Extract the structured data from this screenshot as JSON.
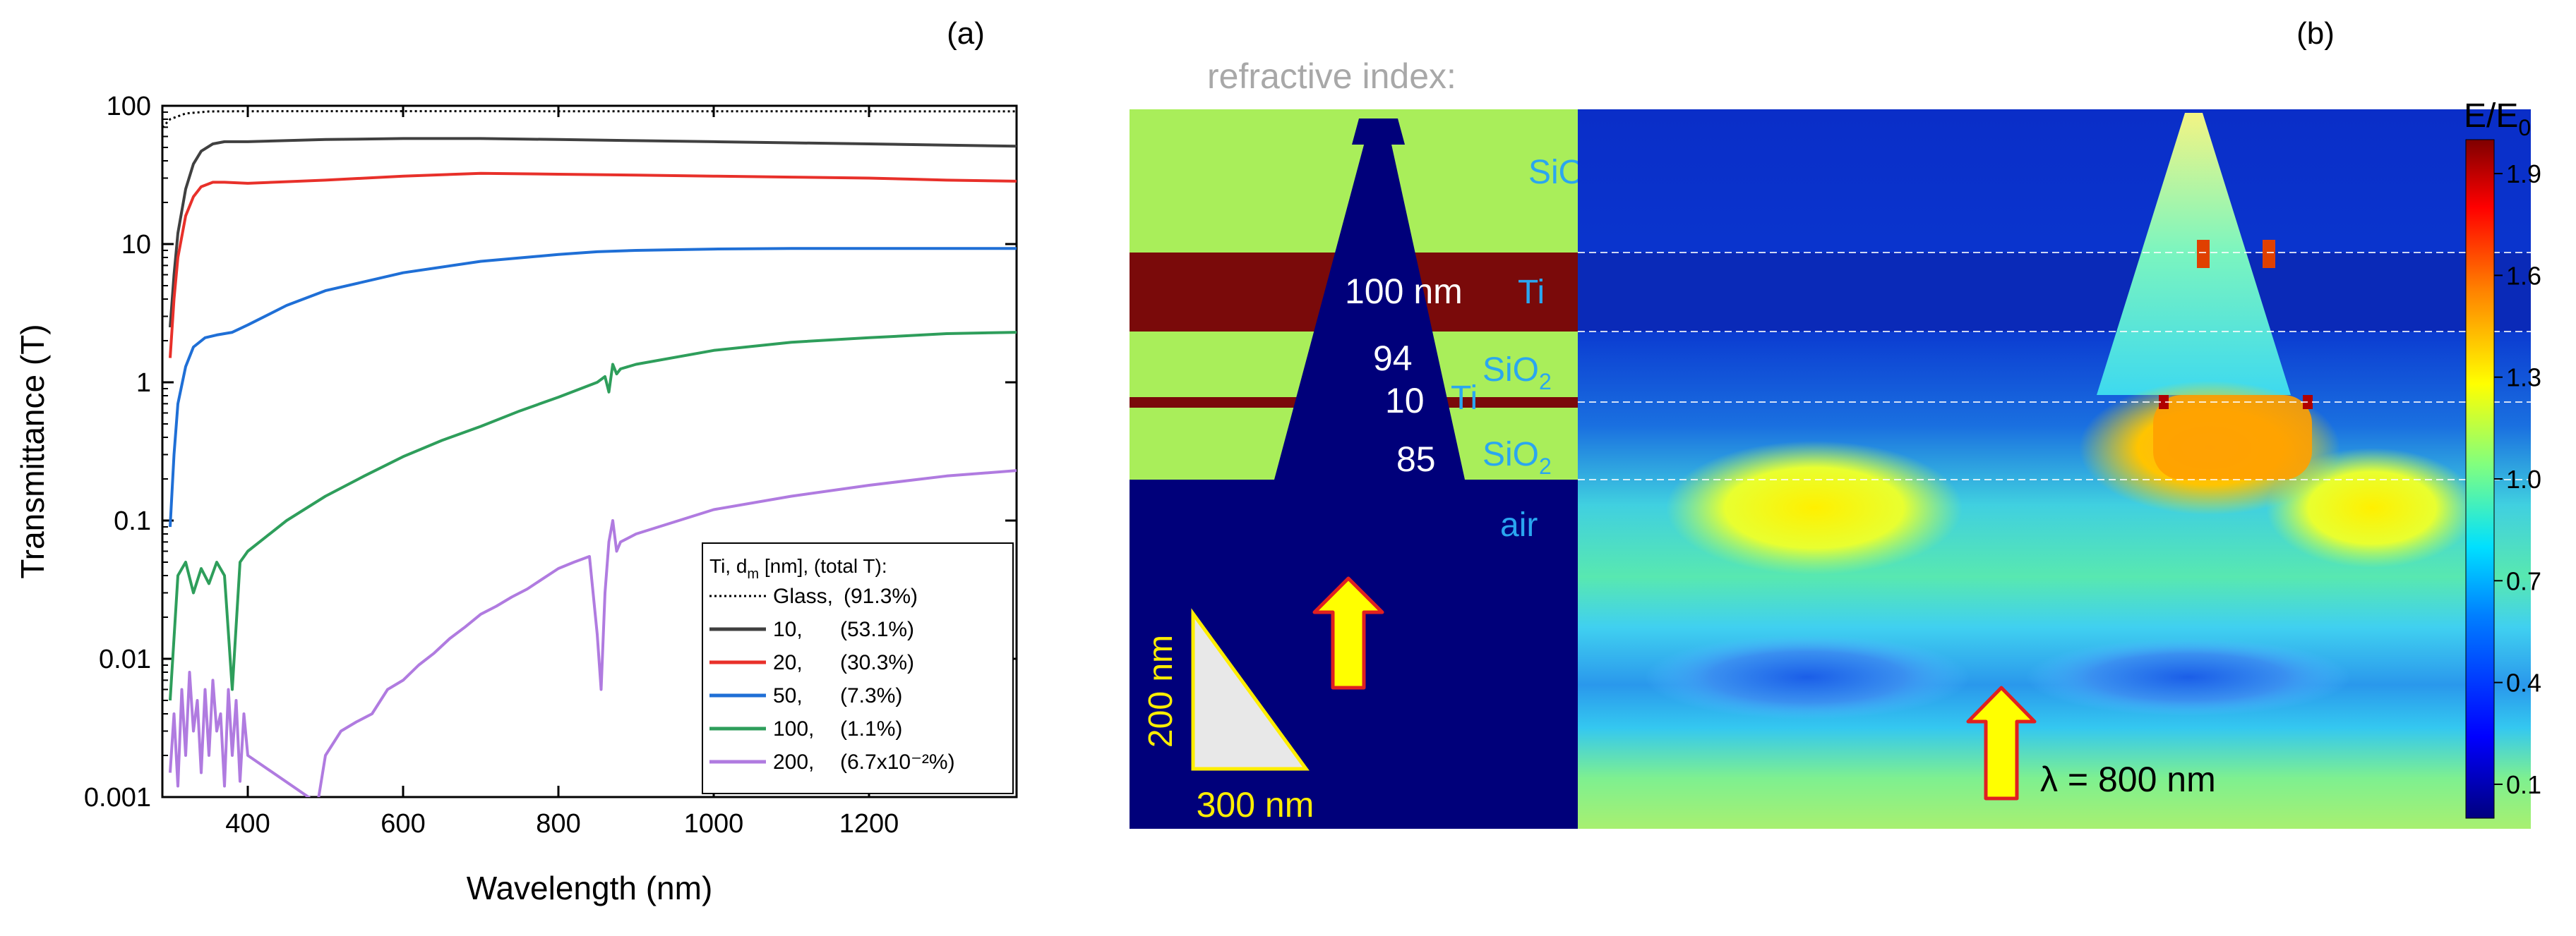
{
  "panel_a": {
    "label": "(a)",
    "chart_data": {
      "type": "line",
      "xlabel": "Wavelength (nm)",
      "ylabel": "Transmittance (T)",
      "xlim": [
        290,
        1390
      ],
      "ylim": [
        0.001,
        100
      ],
      "yscale": "log",
      "x_ticks": [
        400,
        600,
        800,
        1000,
        1200
      ],
      "x_tick_labels": [
        "400",
        "600",
        "800",
        "1000",
        "1200"
      ],
      "y_ticks": [
        0.001,
        0.01,
        0.1,
        1,
        10,
        100
      ],
      "y_tick_labels": [
        "0.001",
        "0.01",
        "0.1",
        "1",
        "10",
        "100"
      ],
      "legend": {
        "title_parts": [
          "Ti, d",
          "m",
          " [nm], (total T):"
        ],
        "position": "bottom-right"
      },
      "series": [
        {
          "name": "Glass",
          "label": "Glass,",
          "total": "(91.3%)",
          "color": "#000000",
          "style": "dotted",
          "x": [
            290,
            300,
            320,
            350,
            400,
            600,
            800,
            1000,
            1200,
            1390
          ],
          "y": [
            70,
            80,
            88,
            91,
            91.3,
            91.5,
            91.4,
            91.3,
            91.2,
            91.1
          ]
        },
        {
          "name": "10",
          "label": "10,",
          "total": "(53.1%)",
          "color": "#404040",
          "style": "solid",
          "x": [
            300,
            305,
            310,
            320,
            330,
            340,
            355,
            370,
            400,
            500,
            600,
            700,
            800,
            900,
            1000,
            1100,
            1200,
            1300,
            1390
          ],
          "y": [
            2.5,
            6,
            12,
            25,
            38,
            47,
            53,
            55,
            55,
            57,
            58,
            58,
            57,
            56,
            55,
            54,
            53,
            52,
            51
          ]
        },
        {
          "name": "20",
          "label": "20,",
          "total": "(30.3%)",
          "color": "#e8302a",
          "style": "solid",
          "x": [
            300,
            305,
            310,
            320,
            330,
            340,
            355,
            370,
            400,
            500,
            600,
            700,
            800,
            900,
            1000,
            1100,
            1200,
            1250,
            1300,
            1390
          ],
          "y": [
            1.5,
            4,
            8,
            16,
            22,
            26,
            28,
            28,
            27.5,
            29,
            31,
            32.5,
            32,
            31.5,
            31,
            30.5,
            30,
            29.5,
            29,
            28.5
          ]
        },
        {
          "name": "50",
          "label": "50,",
          "total": "(7.3%)",
          "color": "#1f6fd6",
          "style": "solid",
          "x": [
            300,
            305,
            310,
            320,
            330,
            345,
            360,
            380,
            400,
            450,
            500,
            600,
            700,
            800,
            850,
            900,
            1000,
            1100,
            1200,
            1300,
            1390
          ],
          "y": [
            0.09,
            0.3,
            0.7,
            1.3,
            1.8,
            2.1,
            2.2,
            2.3,
            2.6,
            3.6,
            4.6,
            6.2,
            7.5,
            8.4,
            8.8,
            9.0,
            9.2,
            9.3,
            9.3,
            9.3,
            9.3
          ]
        },
        {
          "name": "100",
          "label": "100,",
          "total": "(1.1%)",
          "color": "#2e9e5b",
          "style": "solid",
          "x": [
            300,
            310,
            320,
            330,
            340,
            350,
            360,
            370,
            380,
            390,
            400,
            450,
            500,
            550,
            600,
            650,
            700,
            750,
            800,
            850,
            860,
            865,
            870,
            875,
            880,
            900,
            1000,
            1100,
            1200,
            1300,
            1390
          ],
          "y": [
            0.005,
            0.04,
            0.05,
            0.03,
            0.045,
            0.035,
            0.05,
            0.04,
            0.006,
            0.05,
            0.06,
            0.1,
            0.15,
            0.21,
            0.29,
            0.38,
            0.48,
            0.62,
            0.78,
            1.0,
            1.1,
            0.85,
            1.35,
            1.15,
            1.25,
            1.35,
            1.7,
            1.95,
            2.1,
            2.25,
            2.3
          ]
        },
        {
          "name": "200",
          "label": "200,",
          "total": "(6.7x10⁻²%)",
          "color": "#b07be0",
          "style": "solid",
          "x": [
            300,
            305,
            310,
            315,
            320,
            325,
            330,
            335,
            340,
            345,
            350,
            355,
            360,
            365,
            370,
            375,
            380,
            385,
            390,
            395,
            400,
            490,
            500,
            520,
            540,
            560,
            580,
            600,
            620,
            640,
            660,
            680,
            700,
            720,
            740,
            760,
            780,
            800,
            820,
            840,
            850,
            855,
            860,
            865,
            870,
            875,
            880,
            900,
            1000,
            1100,
            1200,
            1300,
            1390
          ],
          "y": [
            0.0015,
            0.004,
            0.0012,
            0.006,
            0.002,
            0.008,
            0.003,
            0.005,
            0.0015,
            0.006,
            0.002,
            0.007,
            0.003,
            0.004,
            0.0012,
            0.006,
            0.002,
            0.005,
            0.0013,
            0.004,
            0.002,
            0.0009,
            0.002,
            0.003,
            0.0035,
            0.004,
            0.006,
            0.007,
            0.009,
            0.011,
            0.014,
            0.017,
            0.021,
            0.024,
            0.028,
            0.032,
            0.038,
            0.045,
            0.05,
            0.055,
            0.015,
            0.006,
            0.03,
            0.07,
            0.1,
            0.06,
            0.07,
            0.08,
            0.12,
            0.15,
            0.18,
            0.21,
            0.23
          ]
        }
      ]
    }
  },
  "panel_b": {
    "label": "(b)",
    "refractive_title": "refractive index:",
    "layers": {
      "sio2_top": "SiO",
      "ti_thick": "Ti",
      "sio2_mid": "SiO",
      "ti_thin": "Ti",
      "sio2_bottom": "SiO",
      "subscript": "2",
      "air": "air"
    },
    "thickness": {
      "ti_thick": "100 nm",
      "sio2_mid": "94",
      "ti_thin": "10",
      "sio2_bottom": "85"
    },
    "scale": {
      "height": "200 nm",
      "width": "300 nm"
    },
    "wavelength": "λ = 800 nm",
    "colorbar": {
      "title": "E/E",
      "title_sub": "0",
      "ticks": [
        0.1,
        0.4,
        0.7,
        1.0,
        1.3,
        1.6,
        1.9
      ],
      "tick_labels": [
        "0.1",
        "0.4",
        "0.7",
        "1.0",
        "1.3",
        "1.6",
        "1.9"
      ],
      "range": [
        0.0,
        2.0
      ]
    },
    "colors": {
      "index_sio2": "#a9ee5a",
      "index_ti": "#7a0a0a",
      "index_air": "#00007a",
      "arrow_fill": "#ffff00",
      "arrow_stroke": "#e02020",
      "label_cyan": "#2aa6f0",
      "scale_yellow": "#ffee00",
      "title_gray": "#a8a8a8"
    }
  }
}
